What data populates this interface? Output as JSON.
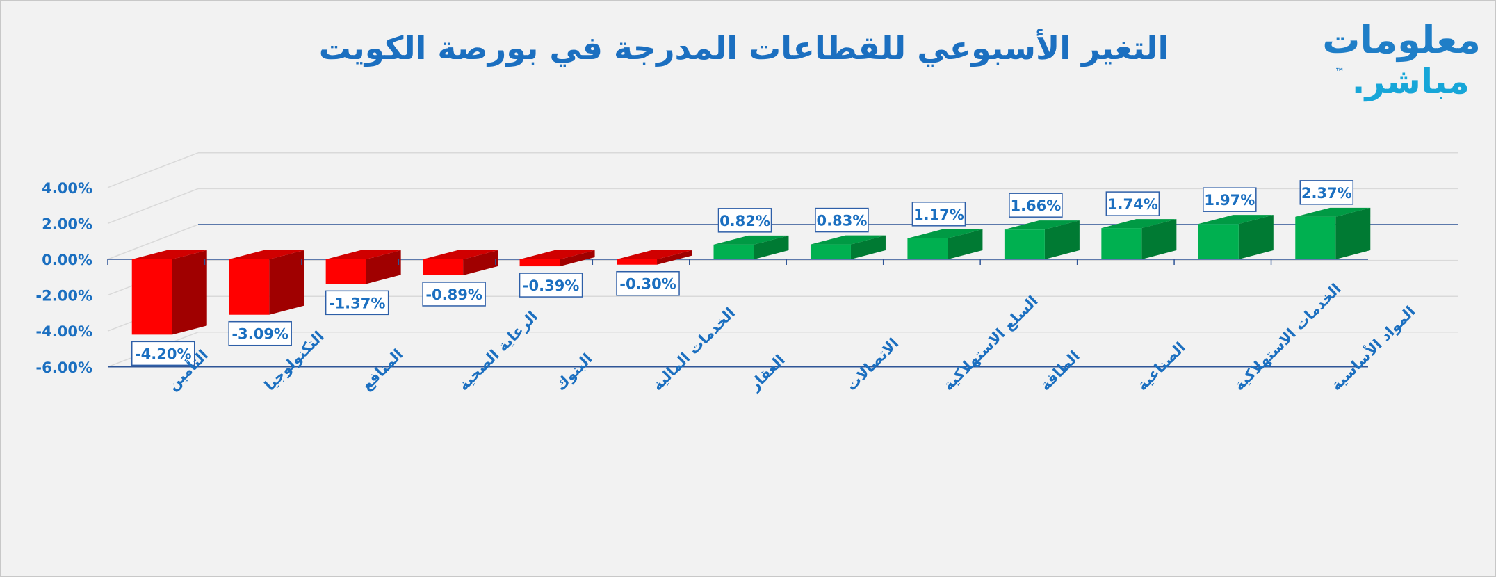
{
  "header": {
    "title": "التغير الأسبوعي للقطاعات المدرجة في بورصة الكويت",
    "logo_line1": "معلومات",
    "logo_line2": "مباشر.",
    "logo_tm": "™"
  },
  "chart_data": {
    "type": "bar",
    "title": "التغير الأسبوعي للقطاعات المدرجة في بورصة الكويت",
    "xlabel": "",
    "ylabel": "",
    "ylim": [
      -6,
      4
    ],
    "yticks": [
      "4.00%",
      "2.00%",
      "0.00%",
      "-2.00%",
      "-4.00%",
      "-6.00%"
    ],
    "grid": true,
    "legend": "none",
    "categories": [
      "التأمين",
      "التكنولوجيا",
      "المنافع",
      "الرعاية الصحية",
      "البنوك",
      "الخدمات المالية",
      "العقار",
      "الاتصالات",
      "السلع الاستهلاكية",
      "الطاقة",
      "الصناعية",
      "الخدمات الاستهلاكية",
      "المواد الأساسية"
    ],
    "values": [
      -4.2,
      -3.09,
      -1.37,
      -0.89,
      -0.39,
      -0.3,
      0.82,
      0.83,
      1.17,
      1.66,
      1.74,
      1.97,
      2.37
    ],
    "data_labels": [
      "-4.20%",
      "-3.09%",
      "-1.37%",
      "-0.89%",
      "-0.39%",
      "-0.30%",
      "0.82%",
      "0.83%",
      "1.17%",
      "1.66%",
      "1.74%",
      "1.97%",
      "2.37%"
    ],
    "colors": {
      "negative_front": "#ff0000",
      "negative_side": "#a00000",
      "negative_top": "#d00000",
      "positive_front": "#00b050",
      "positive_side": "#007a33",
      "positive_top": "#009a44",
      "axis_text": "#1b6fc0",
      "label_border": "#2e5fa8",
      "gridline": "#d9d9d9",
      "axis_line": "#2f5597"
    }
  }
}
